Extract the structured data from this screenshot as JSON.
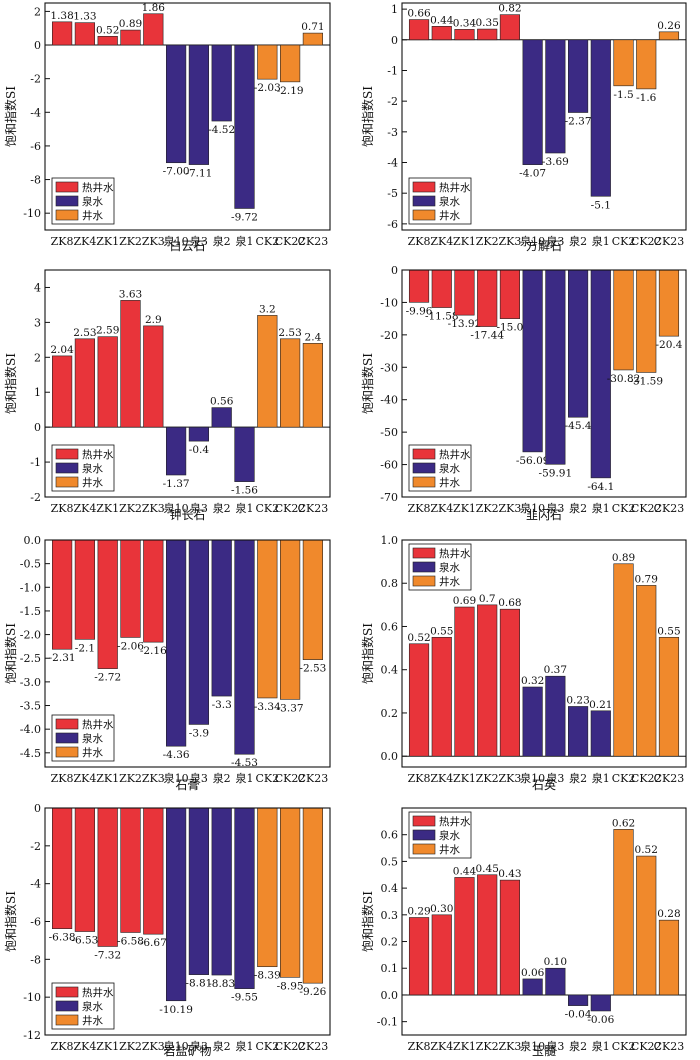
{
  "colors": {
    "hot_well": "#e8343a",
    "spring": "#3b2a84",
    "well": "#f0892c"
  },
  "chart_data": [
    {
      "type": "bar",
      "xlabel": "白云石",
      "ylabel": "饱和指数SI",
      "categories": [
        "ZK8",
        "ZK4",
        "ZK1",
        "ZK2",
        "ZK3",
        "泉10",
        "泉3",
        "泉2",
        "泉1",
        "CK2",
        "CK22",
        "CK23"
      ],
      "groups": [
        "hot_well",
        "hot_well",
        "hot_well",
        "hot_well",
        "hot_well",
        "spring",
        "spring",
        "spring",
        "spring",
        "well",
        "well",
        "well"
      ],
      "values": [
        1.38,
        1.33,
        0.52,
        0.89,
        1.86,
        -7.0,
        -7.11,
        -4.52,
        -9.72,
        -2.03,
        -2.19,
        0.71
      ],
      "value_labels": [
        "1.38",
        "1.33",
        "0.52",
        "0.89",
        "1.86",
        "-7.00",
        "-7.11",
        "-4.52",
        "-9.72",
        "-2.03",
        "-2.19",
        "0.71"
      ],
      "ylim": [
        -11,
        2.5
      ],
      "yticks": [
        2,
        0,
        -2,
        -4,
        -6,
        -8,
        -10
      ],
      "legend_position": "bottom-left",
      "legend": [
        "热井水",
        "泉水",
        "井水"
      ]
    },
    {
      "type": "bar",
      "xlabel": "方解石",
      "ylabel": "饱和指数SI",
      "categories": [
        "ZK8",
        "ZK4",
        "ZK1",
        "ZK2",
        "ZK3",
        "泉10",
        "泉3",
        "泉2",
        "泉1",
        "CK2",
        "CK22",
        "CK23"
      ],
      "groups": [
        "hot_well",
        "hot_well",
        "hot_well",
        "hot_well",
        "hot_well",
        "spring",
        "spring",
        "spring",
        "spring",
        "well",
        "well",
        "well"
      ],
      "values": [
        0.66,
        0.44,
        0.34,
        0.35,
        0.82,
        -4.07,
        -3.69,
        -2.37,
        -5.1,
        -1.5,
        -1.6,
        0.26
      ],
      "value_labels": [
        "0.66",
        "0.44",
        "0.34",
        "0.35",
        "0.82",
        "-4.07",
        "-3.69",
        "-2.37",
        "-5.1",
        "-1.5",
        "-1.6",
        "0.26"
      ],
      "ylim": [
        -6.2,
        1.2
      ],
      "yticks": [
        1,
        0,
        -1,
        -2,
        -3,
        -4,
        -5,
        -6
      ],
      "legend_position": "bottom-left",
      "legend": [
        "热井水",
        "泉水",
        "井水"
      ]
    },
    {
      "type": "bar",
      "xlabel": "钾长石",
      "ylabel": "饱和指数SI",
      "categories": [
        "ZK8",
        "ZK4",
        "ZK1",
        "ZK2",
        "ZK3",
        "泉10",
        "泉3",
        "泉2",
        "泉1",
        "CK2",
        "CK22",
        "CK23"
      ],
      "groups": [
        "hot_well",
        "hot_well",
        "hot_well",
        "hot_well",
        "hot_well",
        "spring",
        "spring",
        "spring",
        "spring",
        "well",
        "well",
        "well"
      ],
      "values": [
        2.04,
        2.53,
        2.59,
        3.63,
        2.9,
        -1.37,
        -0.4,
        0.56,
        -1.56,
        3.2,
        2.53,
        2.4
      ],
      "value_labels": [
        "2.04",
        "2.53",
        "2.59",
        "3.63",
        "2.9",
        "-1.37",
        "-0.4",
        "0.56",
        "-1.56",
        "3.2",
        "2.53",
        "2.4"
      ],
      "ylim": [
        -2,
        4.5
      ],
      "yticks": [
        4,
        3,
        2,
        1,
        0,
        -1,
        -2
      ],
      "legend_position": "bottom-left",
      "legend": [
        "热井水",
        "泉水",
        "井水"
      ]
    },
    {
      "type": "bar",
      "xlabel": "韭闪石",
      "ylabel": "饱和指数SI",
      "categories": [
        "ZK8",
        "ZK4",
        "ZK1",
        "ZK2",
        "ZK3",
        "泉10",
        "泉3",
        "泉2",
        "泉1",
        "CK2",
        "CK22",
        "CK23"
      ],
      "groups": [
        "hot_well",
        "hot_well",
        "hot_well",
        "hot_well",
        "hot_well",
        "spring",
        "spring",
        "spring",
        "spring",
        "well",
        "well",
        "well"
      ],
      "values": [
        -9.96,
        -11.58,
        -13.92,
        -17.44,
        -15.0,
        -56.09,
        -59.91,
        -45.4,
        -64.1,
        -30.82,
        -31.59,
        -20.4
      ],
      "value_labels": [
        "-9.96",
        "-11.58",
        "-13.92",
        "-17.44",
        "-15.0",
        "-56.09",
        "-59.91",
        "-45.4",
        "-64.1",
        "-30.82",
        "-31.59",
        "-20.4"
      ],
      "ylim": [
        -70,
        0
      ],
      "yticks": [
        0,
        -10,
        -20,
        -30,
        -40,
        -50,
        -60,
        -70
      ],
      "legend_position": "bottom-left",
      "legend": [
        "热井水",
        "泉水",
        "井水"
      ]
    },
    {
      "type": "bar",
      "xlabel": "石膏",
      "ylabel": "饱和指数SI",
      "categories": [
        "ZK8",
        "ZK4",
        "ZK1",
        "ZK2",
        "ZK3",
        "泉10",
        "泉3",
        "泉2",
        "泉1",
        "CK2",
        "CK22",
        "CK23"
      ],
      "groups": [
        "hot_well",
        "hot_well",
        "hot_well",
        "hot_well",
        "hot_well",
        "spring",
        "spring",
        "spring",
        "spring",
        "well",
        "well",
        "well"
      ],
      "values": [
        -2.31,
        -2.1,
        -2.72,
        -2.06,
        -2.16,
        -4.36,
        -3.9,
        -3.3,
        -4.53,
        -3.34,
        -3.37,
        -2.53
      ],
      "value_labels": [
        "-2.31",
        "-2.1",
        "-2.72",
        "-2.06",
        "-2.16",
        "-4.36",
        "-3.9",
        "-3.3",
        "-4.53",
        "-3.34",
        "-3.37",
        "-2.53"
      ],
      "ylim": [
        -4.8,
        0
      ],
      "yticks": [
        0.0,
        -0.5,
        -1.0,
        -1.5,
        -2.0,
        -2.5,
        -3.0,
        -3.5,
        -4.0,
        -4.5
      ],
      "ytick_labels": [
        "0.0",
        "-0.5",
        "-1.0",
        "-1.5",
        "-2.0",
        "-2.5",
        "-3.0",
        "-3.5",
        "-4.0",
        "-4.5"
      ],
      "legend_position": "bottom-left",
      "legend": [
        "热井水",
        "泉水",
        "井水"
      ]
    },
    {
      "type": "bar",
      "xlabel": "石英",
      "ylabel": "饱和指数SI",
      "categories": [
        "ZK8",
        "ZK4",
        "ZK1",
        "ZK2",
        "ZK3",
        "泉10",
        "泉3",
        "泉2",
        "泉1",
        "CK2",
        "CK22",
        "CK23"
      ],
      "groups": [
        "hot_well",
        "hot_well",
        "hot_well",
        "hot_well",
        "hot_well",
        "spring",
        "spring",
        "spring",
        "spring",
        "well",
        "well",
        "well"
      ],
      "values": [
        0.52,
        0.55,
        0.69,
        0.7,
        0.68,
        0.32,
        0.37,
        0.23,
        0.21,
        0.89,
        0.79,
        0.55
      ],
      "value_labels": [
        "0.52",
        "0.55",
        "0.69",
        "0.7",
        "0.68",
        "0.32",
        "0.37",
        "0.23",
        "0.21",
        "0.89",
        "0.79",
        "0.55"
      ],
      "ylim": [
        -0.05,
        1.0
      ],
      "yticks": [
        0.0,
        0.2,
        0.4,
        0.6,
        0.8,
        1.0
      ],
      "ytick_labels": [
        "0.0",
        "0.2",
        "0.4",
        "0.6",
        "0.8",
        "1.0"
      ],
      "legend_position": "top-left",
      "legend": [
        "热井水",
        "泉水",
        "井水"
      ]
    },
    {
      "type": "bar",
      "xlabel": "岩盐矿物",
      "ylabel": "饱和指数SI",
      "categories": [
        "ZK8",
        "ZK4",
        "ZK1",
        "ZK2",
        "ZK3",
        "泉10",
        "泉3",
        "泉2",
        "泉1",
        "CK2",
        "CK22",
        "CK23"
      ],
      "groups": [
        "hot_well",
        "hot_well",
        "hot_well",
        "hot_well",
        "hot_well",
        "spring",
        "spring",
        "spring",
        "spring",
        "well",
        "well",
        "well"
      ],
      "values": [
        -6.38,
        -6.53,
        -7.32,
        -6.58,
        -6.67,
        -10.19,
        -8.81,
        -8.83,
        -9.55,
        -8.39,
        -8.95,
        -9.26
      ],
      "value_labels": [
        "-6.38",
        "-6.53",
        "-7.32",
        "-6.58",
        "-6.67",
        "-10.19",
        "-8.81",
        "-8.83",
        "-9.55",
        "-8.39",
        "-8.95",
        "-9.26"
      ],
      "ylim": [
        -12,
        0
      ],
      "yticks": [
        0,
        -2,
        -4,
        -6,
        -8,
        -10,
        -12
      ],
      "legend_position": "bottom-left",
      "legend": [
        "热井水",
        "泉水",
        "井水"
      ]
    },
    {
      "type": "bar",
      "xlabel": "玉髓",
      "ylabel": "饱和指数SI",
      "categories": [
        "ZK8",
        "ZK4",
        "ZK1",
        "ZK2",
        "ZK3",
        "泉10",
        "泉3",
        "泉2",
        "泉1",
        "CK2",
        "CK22",
        "CK23"
      ],
      "groups": [
        "hot_well",
        "hot_well",
        "hot_well",
        "hot_well",
        "hot_well",
        "spring",
        "spring",
        "spring",
        "spring",
        "well",
        "well",
        "well"
      ],
      "values": [
        0.29,
        0.3,
        0.44,
        0.45,
        0.43,
        0.06,
        0.1,
        -0.04,
        -0.06,
        0.62,
        0.52,
        0.28
      ],
      "value_labels": [
        "0.29",
        "0.30",
        "0.44",
        "0.45",
        "0.43",
        "0.06",
        "0.10",
        "-0.04",
        "-0.06",
        "0.62",
        "0.52",
        "0.28"
      ],
      "ylim": [
        -0.15,
        0.7
      ],
      "yticks": [
        0.7,
        0.6,
        0.5,
        0.4,
        0.3,
        0.2,
        0.1,
        0.0,
        -0.1
      ],
      "ytick_labels": [
        "",
        "0.6",
        "0.5",
        "0.4",
        "0.3",
        "0.2",
        "0.1",
        "0.0",
        "-0.1"
      ],
      "legend_position": "top-left",
      "legend": [
        "热井水",
        "泉水",
        "井水"
      ]
    }
  ]
}
